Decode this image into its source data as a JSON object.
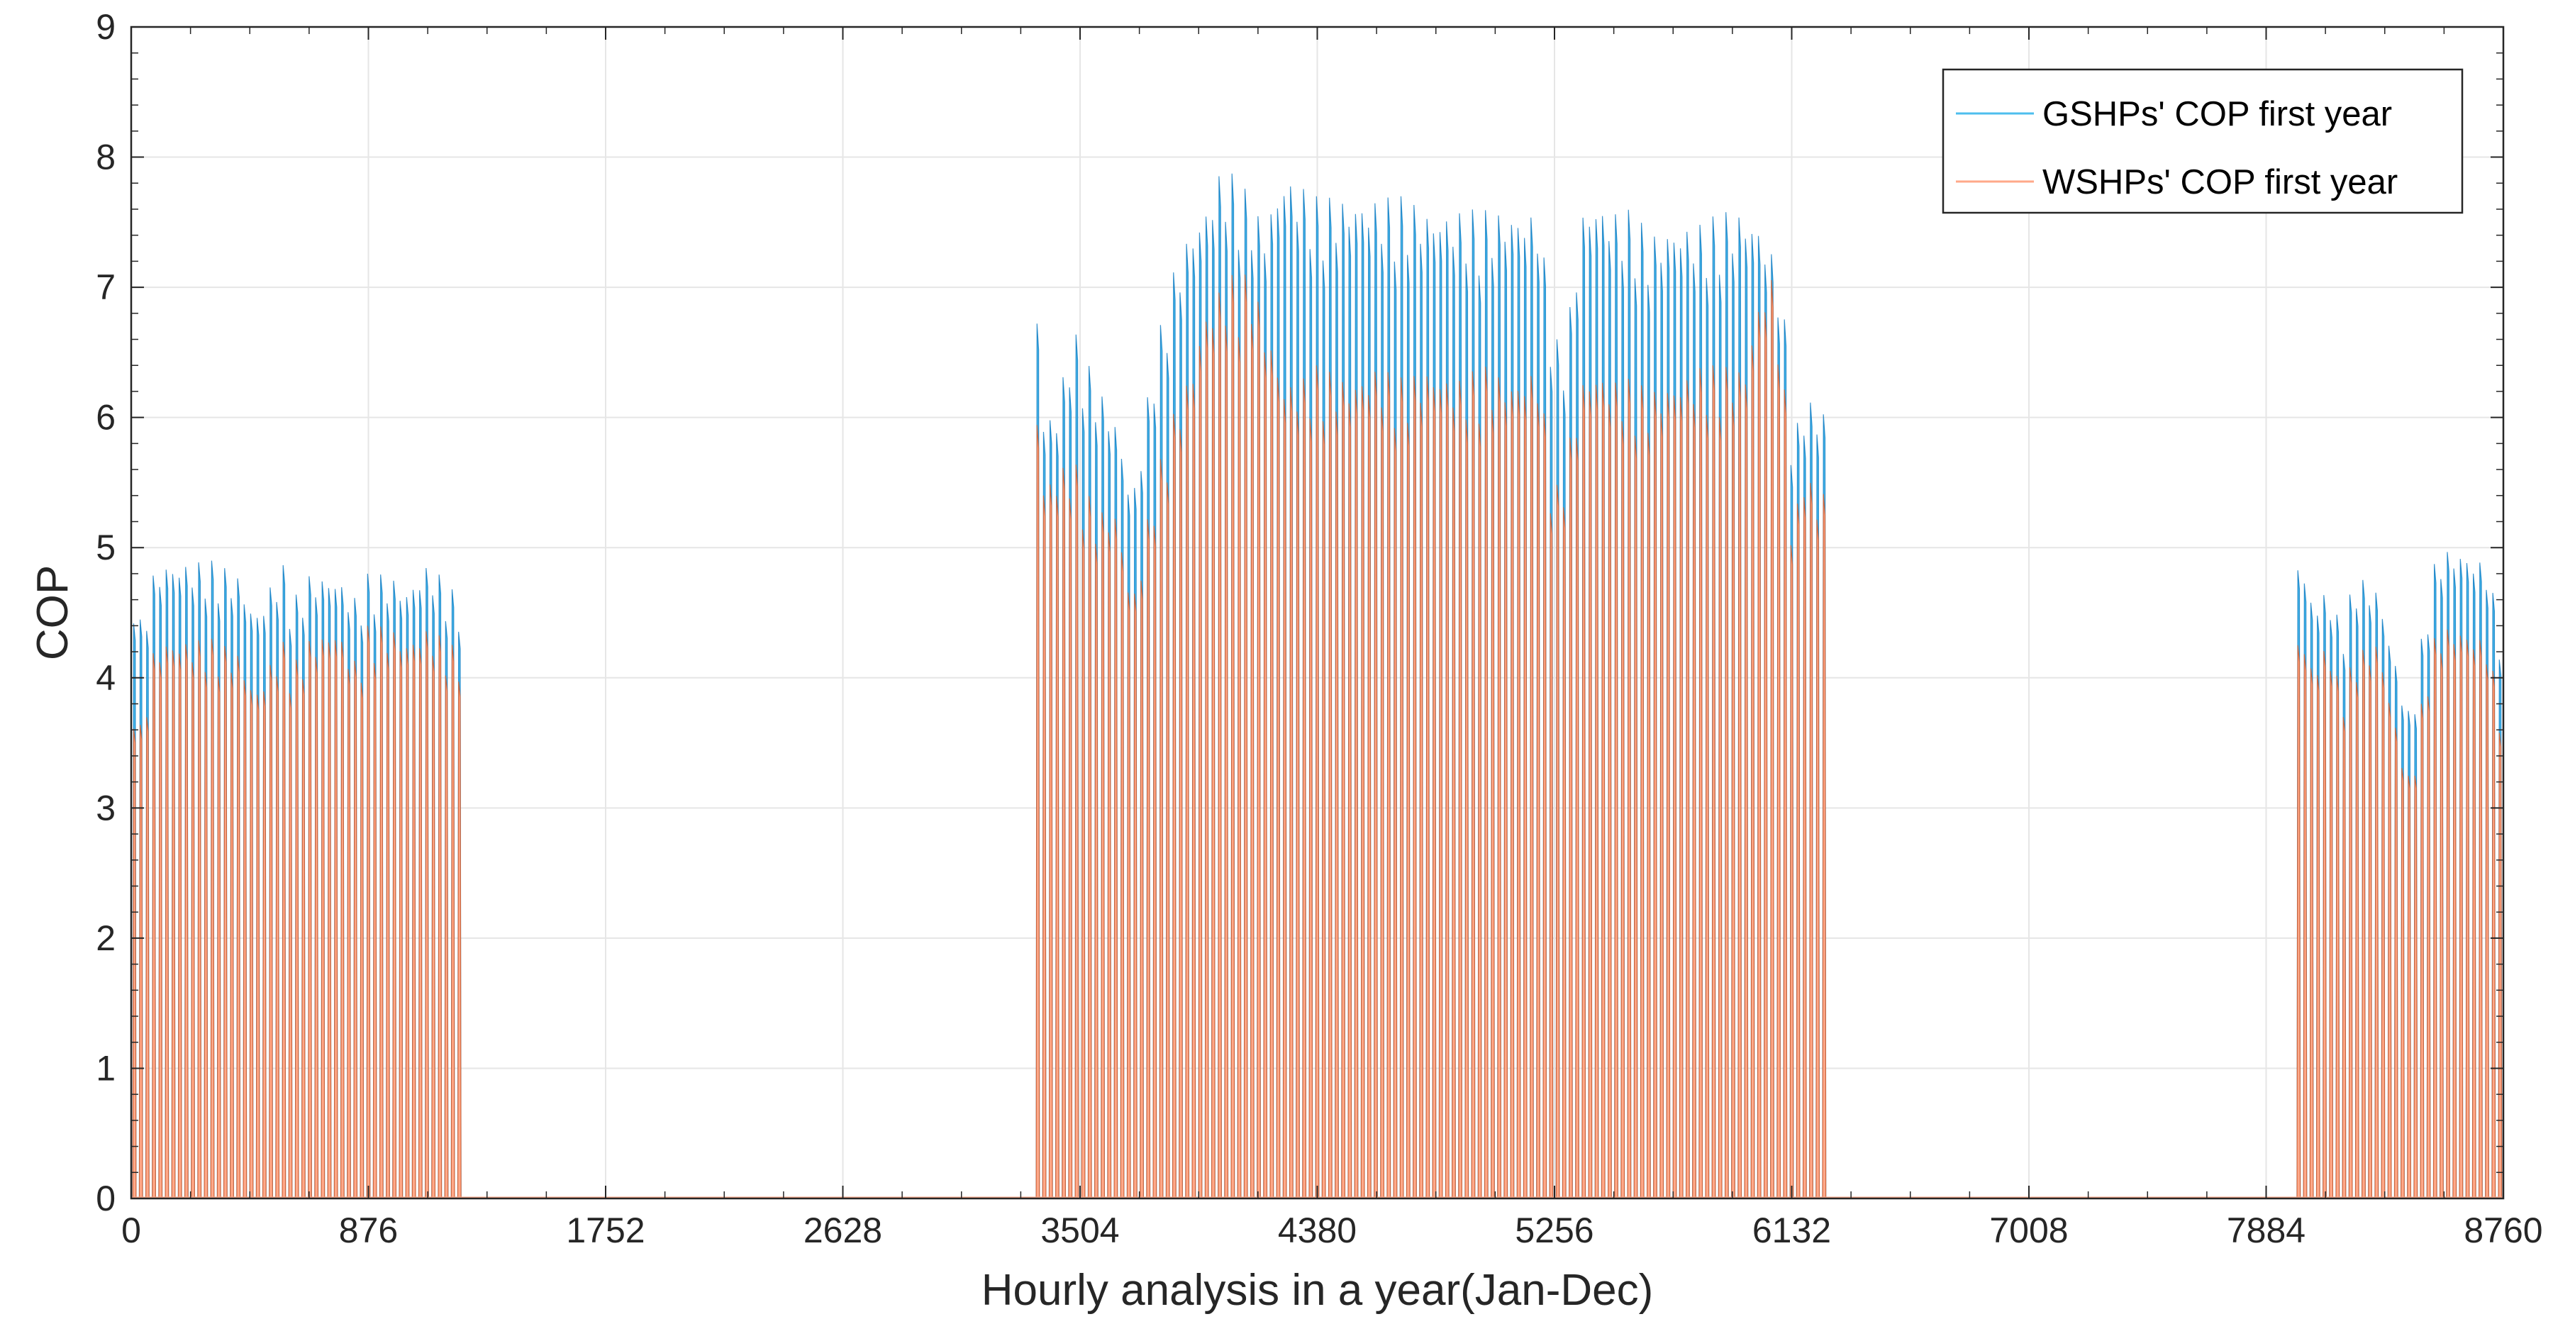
{
  "chart_data": {
    "type": "line",
    "title": "",
    "xlabel": "Hourly analysis in a year(Jan-Dec)",
    "ylabel": "COP",
    "xlim": [
      0,
      8760
    ],
    "ylim": [
      0,
      9
    ],
    "xticks": [
      0,
      876,
      1752,
      2628,
      3504,
      4380,
      5256,
      6132,
      7008,
      7884,
      8760
    ],
    "yticks": [
      0,
      1,
      2,
      3,
      4,
      5,
      6,
      7,
      8,
      9
    ],
    "grid": true,
    "legend_position": "top-right",
    "series": [
      {
        "name": "GSHPs' COP first year",
        "color": "#0072BD",
        "fill_color": "#4DBEEE",
        "envelope": {
          "x": [
            0,
            40,
            80,
            120,
            200,
            300,
            400,
            460,
            560,
            600,
            660,
            760,
            840,
            876,
            960,
            1020,
            1100,
            1220,
            3340,
            3360,
            3420,
            3480,
            3560,
            3640,
            3700,
            3780,
            3860,
            3920,
            3960,
            4020,
            4060,
            4100,
            4140,
            4180,
            4260,
            4320,
            4380,
            4500,
            4600,
            4700,
            4800,
            4900,
            5000,
            5100,
            5200,
            5256,
            5300,
            5360,
            5400,
            5480,
            5560,
            5600,
            5700,
            5800,
            5900,
            5960,
            6020,
            6060,
            6100,
            6140,
            6180,
            6220,
            6260,
            8000,
            8060,
            8120,
            8160,
            8220,
            8300,
            8380,
            8420,
            8480,
            8520,
            8600,
            8700,
            8760
          ],
          "y": [
            4.9,
            4.4,
            4.8,
            4.9,
            4.9,
            4.9,
            4.8,
            4.5,
            4.9,
            4.6,
            4.8,
            4.8,
            4.6,
            4.8,
            4.8,
            4.7,
            4.9,
            4.6,
            7.5,
            6.0,
            6.1,
            6.7,
            6.3,
            6.0,
            5.4,
            6.5,
            7.2,
            7.5,
            7.6,
            7.9,
            7.9,
            7.8,
            7.7,
            7.5,
            7.9,
            7.8,
            7.7,
            7.7,
            7.7,
            7.7,
            7.6,
            7.6,
            7.6,
            7.6,
            7.6,
            6.6,
            6.6,
            7.6,
            7.7,
            7.6,
            7.6,
            7.4,
            7.5,
            7.5,
            7.6,
            7.6,
            7.5,
            7.3,
            7.0,
            5.8,
            6.2,
            6.1,
            6.1,
            5.0,
            4.6,
            4.7,
            4.4,
            4.8,
            4.7,
            4.0,
            3.7,
            4.6,
            5.0,
            5.0,
            4.9,
            4.3
          ]
        }
      },
      {
        "name": "WSHPs' COP first year",
        "color": "#D95319",
        "fill_color": "#FFA98A",
        "envelope": {
          "x": [
            0,
            40,
            80,
            120,
            200,
            300,
            400,
            460,
            560,
            600,
            660,
            760,
            840,
            876,
            960,
            1020,
            1100,
            1220,
            3340,
            3360,
            3420,
            3480,
            3560,
            3640,
            3700,
            3780,
            3860,
            3920,
            3960,
            4020,
            4060,
            4100,
            4140,
            4180,
            4260,
            4320,
            4380,
            4500,
            4600,
            4700,
            4800,
            4900,
            5000,
            5100,
            5200,
            5256,
            5300,
            5360,
            5400,
            5480,
            5560,
            5600,
            5700,
            5800,
            5900,
            5960,
            6020,
            6060,
            6100,
            6140,
            6180,
            6220,
            6260,
            8000,
            8060,
            8120,
            8160,
            8220,
            8300,
            8380,
            8420,
            8480,
            8520,
            8600,
            8700,
            8760
          ],
          "y": [
            4.0,
            3.6,
            4.2,
            4.3,
            4.3,
            4.3,
            4.2,
            3.9,
            4.3,
            4.1,
            4.3,
            4.4,
            4.1,
            4.4,
            4.4,
            4.3,
            4.4,
            4.2,
            6.5,
            5.5,
            5.6,
            5.7,
            5.3,
            5.3,
            4.6,
            5.5,
            6.1,
            6.4,
            6.8,
            7.0,
            7.1,
            7.1,
            7.1,
            6.8,
            6.3,
            6.3,
            6.4,
            6.3,
            6.4,
            6.3,
            6.4,
            6.3,
            6.4,
            6.3,
            6.4,
            5.4,
            5.7,
            6.3,
            6.4,
            6.3,
            6.3,
            6.2,
            6.3,
            6.4,
            6.4,
            6.4,
            7.0,
            7.1,
            6.5,
            5.1,
            5.7,
            5.4,
            5.5,
            4.4,
            4.1,
            4.3,
            3.9,
            4.2,
            4.3,
            3.5,
            3.2,
            4.1,
            4.4,
            4.4,
            4.3,
            3.7
          ]
        }
      }
    ],
    "operating_periods": [
      [
        0,
        1220
      ],
      [
        3340,
        6260
      ],
      [
        8000,
        8760
      ]
    ]
  }
}
